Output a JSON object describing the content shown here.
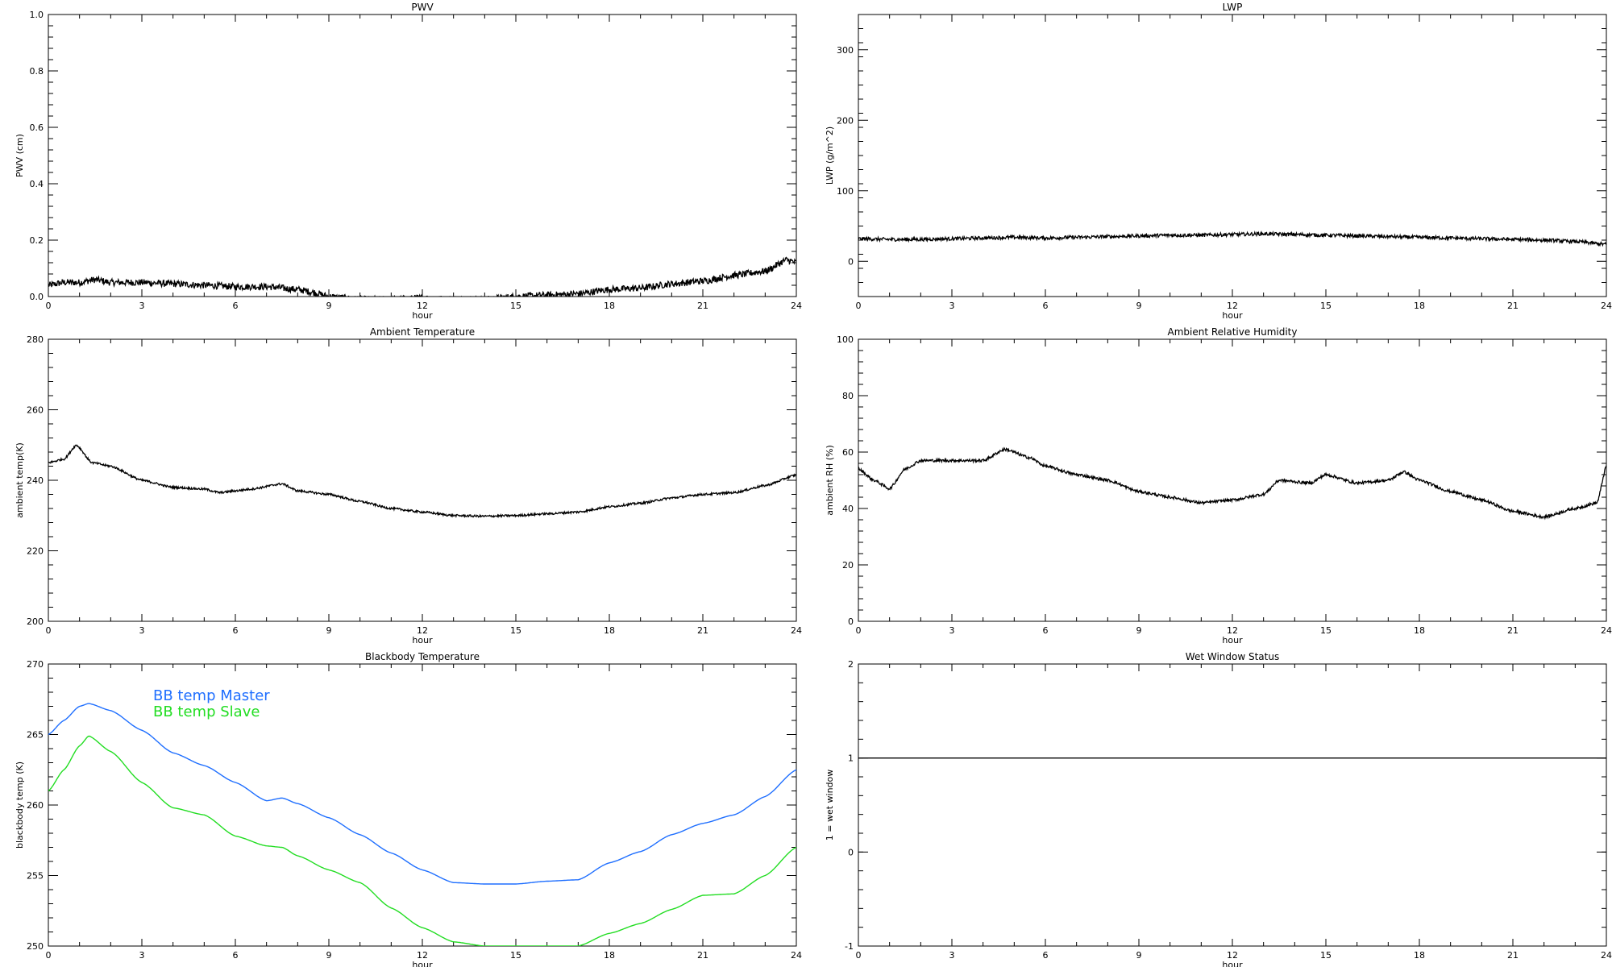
{
  "colors": {
    "axis": "#000000",
    "master": "#1f6fff",
    "slave": "#22dd22"
  },
  "chart_data": [
    {
      "id": "pwv",
      "type": "line",
      "title": "PWV",
      "xlabel": "hour",
      "ylabel": "PWV (cm)",
      "xlim": [
        0,
        24
      ],
      "ylim": [
        0,
        1.0
      ],
      "xticks": [
        0,
        3,
        6,
        9,
        12,
        15,
        18,
        21,
        24
      ],
      "yticks": [
        0,
        0.2,
        0.4,
        0.6,
        0.8,
        1.0
      ],
      "ytick_labels": [
        "0.0",
        "0.2",
        "0.4",
        "0.6",
        "0.8",
        "1.0"
      ],
      "noise": 0.012,
      "series": [
        {
          "color": "#000000",
          "x": [
            0,
            0.5,
            1,
            1.5,
            2,
            3,
            4,
            5,
            6,
            7,
            8,
            8.5,
            9,
            10,
            11,
            12,
            13,
            14,
            15,
            16,
            17,
            18,
            19,
            20,
            21,
            22,
            23,
            23.7,
            24
          ],
          "y": [
            0.04,
            0.05,
            0.05,
            0.06,
            0.05,
            0.05,
            0.045,
            0.04,
            0.035,
            0.035,
            0.025,
            0.015,
            0.0,
            -0.01,
            -0.01,
            -0.005,
            -0.01,
            -0.01,
            0.0,
            0.005,
            0.01,
            0.025,
            0.03,
            0.045,
            0.055,
            0.075,
            0.09,
            0.13,
            0.12
          ]
        }
      ]
    },
    {
      "id": "lwp",
      "type": "line",
      "title": "LWP",
      "xlabel": "hour",
      "ylabel": "LWP (g/m^2)",
      "xlim": [
        0,
        24
      ],
      "ylim": [
        -50,
        350
      ],
      "xticks": [
        0,
        3,
        6,
        9,
        12,
        15,
        18,
        21,
        24
      ],
      "yticks": [
        0,
        100,
        200,
        300
      ],
      "ytick_labels": [
        "0",
        "100",
        "200",
        "300"
      ],
      "noise": 2.5,
      "series": [
        {
          "color": "#000000",
          "x": [
            0,
            1,
            2,
            3,
            4,
            5,
            6,
            7,
            8,
            9,
            10,
            11,
            12,
            13,
            14,
            15,
            16,
            17,
            18,
            19,
            20,
            21,
            22,
            23,
            24
          ],
          "y": [
            32,
            31,
            31,
            32,
            33,
            34,
            33,
            34,
            35,
            36,
            37,
            37,
            38,
            39,
            38,
            37,
            36,
            35,
            34,
            33,
            32,
            31,
            30,
            28,
            24
          ]
        }
      ]
    },
    {
      "id": "ambient-temp",
      "type": "line",
      "title": "Ambient Temperature",
      "xlabel": "hour",
      "ylabel": "ambient temp(K)",
      "xlim": [
        0,
        24
      ],
      "ylim": [
        200,
        280
      ],
      "xticks": [
        0,
        3,
        6,
        9,
        12,
        15,
        18,
        21,
        24
      ],
      "yticks": [
        200,
        220,
        240,
        260,
        280
      ],
      "ytick_labels": [
        "200",
        "220",
        "240",
        "260",
        "280"
      ],
      "noise": 0.3,
      "series": [
        {
          "color": "#000000",
          "x": [
            0,
            0.5,
            0.9,
            1.4,
            2,
            3,
            4,
            5,
            5.5,
            6,
            6.5,
            7.5,
            8,
            9,
            10,
            11,
            12,
            13,
            14,
            15,
            16,
            17,
            18,
            19,
            20,
            21,
            22,
            23,
            24
          ],
          "y": [
            245,
            246,
            250,
            245,
            244,
            240,
            238,
            237.5,
            236.5,
            237,
            237.5,
            239,
            237,
            236,
            234,
            232,
            231,
            230,
            229.8,
            230,
            230.5,
            231,
            232.5,
            233.5,
            235,
            236,
            236.5,
            238.5,
            241.5
          ]
        }
      ]
    },
    {
      "id": "ambient-rh",
      "type": "line",
      "title": "Ambient Relative Humidity",
      "xlabel": "hour",
      "ylabel": "ambient RH (%)",
      "xlim": [
        0,
        24
      ],
      "ylim": [
        0,
        100
      ],
      "xticks": [
        0,
        3,
        6,
        9,
        12,
        15,
        18,
        21,
        24
      ],
      "yticks": [
        0,
        20,
        40,
        60,
        80,
        100
      ],
      "ytick_labels": [
        "0",
        "20",
        "40",
        "60",
        "80",
        "100"
      ],
      "noise": 0.5,
      "series": [
        {
          "color": "#000000",
          "x": [
            0,
            0.5,
            1,
            1.5,
            2,
            3,
            4,
            4.7,
            5.5,
            6,
            7,
            8,
            9,
            10,
            11,
            12,
            13,
            13.5,
            14.5,
            15,
            16,
            17,
            17.5,
            18,
            19,
            20,
            21,
            22,
            23,
            23.7,
            24
          ],
          "y": [
            54,
            50,
            47,
            54,
            57,
            57,
            57,
            61,
            58,
            55,
            52,
            50,
            46,
            44,
            42,
            43,
            45,
            50,
            49,
            52,
            49,
            50,
            53,
            50,
            46,
            43,
            39,
            37,
            40,
            42,
            55
          ]
        }
      ]
    },
    {
      "id": "blackbody-temp",
      "type": "line",
      "title": "Blackbody Temperature",
      "xlabel": "hour",
      "ylabel": "blackbody temp (K)",
      "xlim": [
        0,
        24
      ],
      "ylim": [
        250,
        270
      ],
      "xticks": [
        0,
        3,
        6,
        9,
        12,
        15,
        18,
        21,
        24
      ],
      "yticks": [
        250,
        255,
        260,
        265,
        270
      ],
      "ytick_labels": [
        "250",
        "255",
        "260",
        "265",
        "270"
      ],
      "noise": 0,
      "legend": "top-left",
      "series": [
        {
          "name": "BB temp Master",
          "color": "#1f6fff",
          "x": [
            0,
            0.5,
            1,
            1.3,
            2,
            3,
            4,
            5,
            6,
            7,
            7.5,
            8,
            9,
            10,
            11,
            12,
            13,
            14,
            15,
            16,
            17,
            18,
            19,
            20,
            21,
            22,
            23,
            24
          ],
          "y": [
            265,
            266,
            267,
            267.2,
            266.7,
            265.3,
            263.7,
            262.8,
            261.6,
            260.3,
            260.5,
            260.1,
            259.1,
            257.9,
            256.6,
            255.4,
            254.5,
            254.4,
            254.4,
            254.6,
            254.7,
            255.9,
            256.7,
            257.9,
            258.7,
            259.3,
            260.6,
            262.5
          ]
        },
        {
          "name": "BB temp Slave",
          "color": "#22dd22",
          "x": [
            0,
            0.5,
            1,
            1.3,
            2,
            3,
            4,
            5,
            6,
            7,
            7.5,
            8,
            9,
            10,
            11,
            12,
            13,
            14,
            15,
            16,
            17,
            18,
            19,
            20,
            21,
            22,
            23,
            24
          ],
          "y": [
            261,
            262.5,
            264.2,
            264.9,
            263.8,
            261.6,
            259.8,
            259.3,
            257.8,
            257.1,
            257.0,
            256.4,
            255.4,
            254.5,
            252.7,
            251.3,
            250.3,
            250.0,
            250.0,
            250.0,
            250.0,
            250.9,
            251.6,
            252.6,
            253.6,
            253.7,
            255.0,
            257.0
          ]
        }
      ]
    },
    {
      "id": "wet-window",
      "type": "line",
      "title": "Wet Window Status",
      "xlabel": "hour",
      "ylabel": "1 = wet window",
      "xlim": [
        0,
        24
      ],
      "ylim": [
        -1,
        2
      ],
      "xticks": [
        0,
        3,
        6,
        9,
        12,
        15,
        18,
        21,
        24
      ],
      "yticks": [
        -1,
        0,
        1,
        2
      ],
      "ytick_labels": [
        "-1",
        "0",
        "1",
        "2"
      ],
      "noise": 0,
      "series": [
        {
          "color": "#000000",
          "x": [
            0,
            24
          ],
          "y": [
            1,
            1
          ]
        }
      ]
    }
  ]
}
